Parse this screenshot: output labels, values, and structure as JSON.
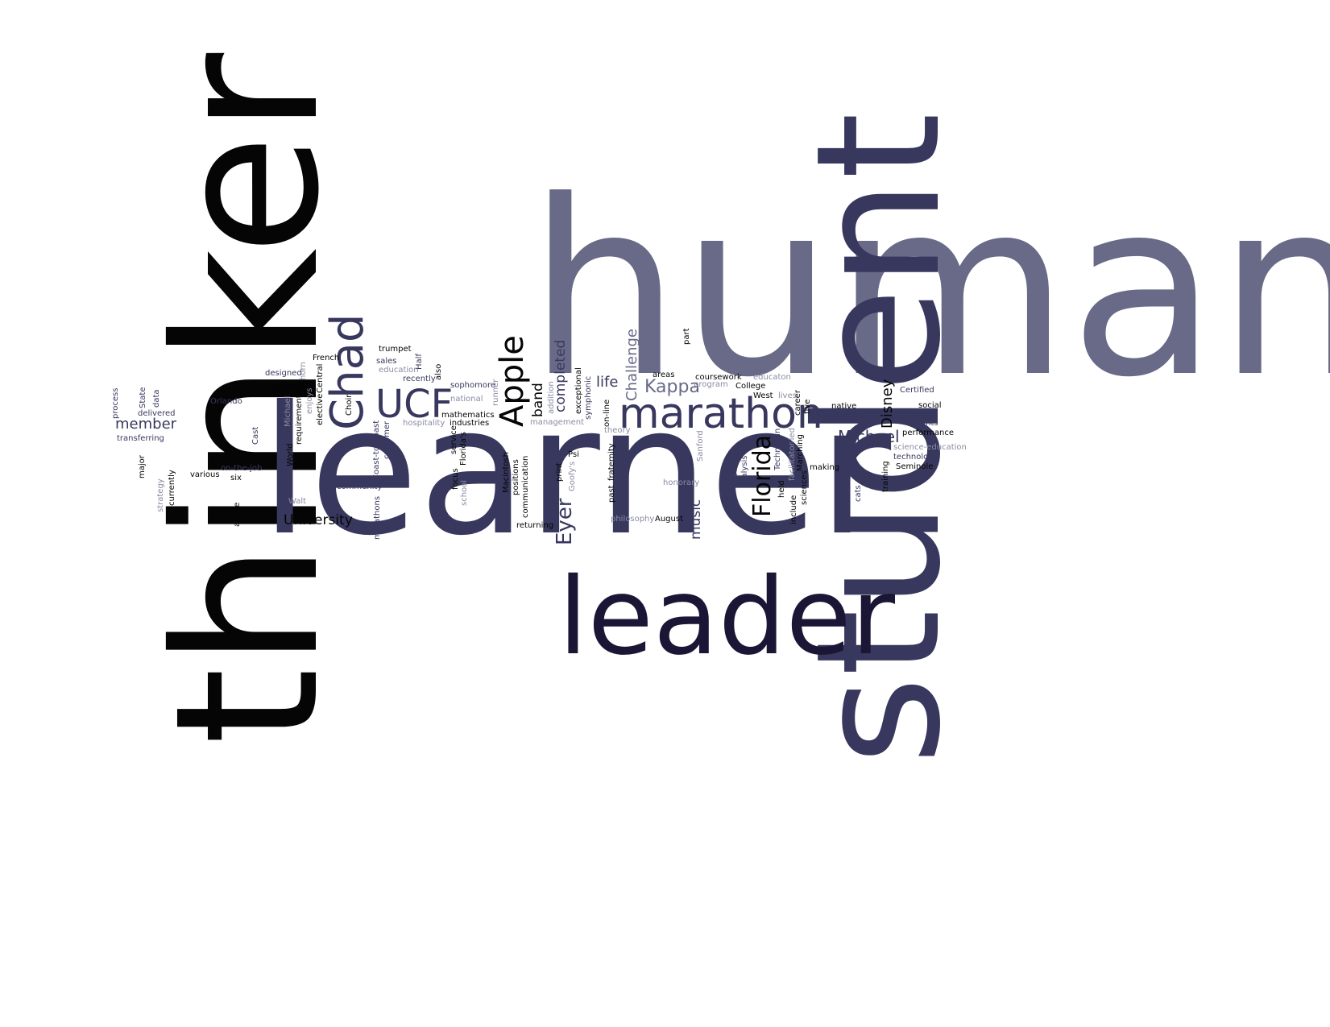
{
  "colors": {
    "background": "#ffffff",
    "slate": "#686a88",
    "navy": "#38385f",
    "dark": "#1b1635",
    "black": "#050505",
    "gray": "#8a8ca3"
  },
  "words": [
    {
      "text": "human",
      "color": "slate"
    },
    {
      "text": "thinker",
      "color": "black"
    },
    {
      "text": "learner",
      "color": "navy"
    },
    {
      "text": "student",
      "color": "navy"
    },
    {
      "text": "leader",
      "color": "dark"
    },
    {
      "text": "marathon",
      "color": "navy"
    },
    {
      "text": "UCF",
      "color": "navy"
    },
    {
      "text": "Chad",
      "color": "navy"
    },
    {
      "text": "Apple",
      "color": "black"
    },
    {
      "text": "Florida",
      "color": "black"
    },
    {
      "text": "Eyer",
      "color": "navy"
    },
    {
      "text": "Kappa",
      "color": "slate"
    },
    {
      "text": "Michael",
      "color": "navy"
    },
    {
      "text": "Disney",
      "color": "black"
    },
    {
      "text": "member",
      "color": "navy"
    },
    {
      "text": "University",
      "color": "black"
    },
    {
      "text": "completed",
      "color": "navy"
    },
    {
      "text": "Challenge",
      "color": "slate"
    },
    {
      "text": "music",
      "color": "navy"
    },
    {
      "text": "band",
      "color": "black"
    },
    {
      "text": "life",
      "color": "navy"
    },
    {
      "text": "trumpet",
      "color": "black"
    },
    {
      "text": "French",
      "color": "black"
    },
    {
      "text": "designed",
      "color": "navy"
    },
    {
      "text": "horn",
      "color": "gray"
    },
    {
      "text": "Half",
      "color": "navy"
    },
    {
      "text": "also",
      "color": "black"
    },
    {
      "text": "sales",
      "color": "navy"
    },
    {
      "text": "education",
      "color": "gray"
    },
    {
      "text": "recently",
      "color": "navy"
    },
    {
      "text": "anticipates",
      "color": "black"
    },
    {
      "text": "Central",
      "color": "black"
    },
    {
      "text": "enjoys",
      "color": "gray"
    },
    {
      "text": "Michael",
      "color": "gray"
    },
    {
      "text": "requirements",
      "color": "black"
    },
    {
      "text": "elective",
      "color": "black"
    },
    {
      "text": "Choir",
      "color": "black"
    },
    {
      "text": "Orlando",
      "color": "navy"
    },
    {
      "text": "sophomore",
      "color": "navy"
    },
    {
      "text": "runner",
      "color": "gray"
    },
    {
      "text": "national",
      "color": "gray"
    },
    {
      "text": "hospitality",
      "color": "gray"
    },
    {
      "text": "industries",
      "color": "black"
    },
    {
      "text": "mathematics",
      "color": "black"
    },
    {
      "text": "service",
      "color": "black"
    },
    {
      "text": "Florida's",
      "color": "black"
    },
    {
      "text": "Coast-to-Coast",
      "color": "navy"
    },
    {
      "text": "customer",
      "color": "navy"
    },
    {
      "text": "process",
      "color": "navy"
    },
    {
      "text": "State",
      "color": "navy"
    },
    {
      "text": "data",
      "color": "navy"
    },
    {
      "text": "delivered",
      "color": "navy"
    },
    {
      "text": "transferring",
      "color": "navy"
    },
    {
      "text": "major",
      "color": "black"
    },
    {
      "text": "strategy",
      "color": "gray"
    },
    {
      "text": "currently",
      "color": "black"
    },
    {
      "text": "various",
      "color": "black"
    },
    {
      "text": "on-the-job",
      "color": "navy"
    },
    {
      "text": "six",
      "color": "black"
    },
    {
      "text": "active",
      "color": "black"
    },
    {
      "text": "Cast",
      "color": "navy"
    },
    {
      "text": "World",
      "color": "black"
    },
    {
      "text": "Race",
      "color": "navy"
    },
    {
      "text": "Walt",
      "color": "gray"
    },
    {
      "text": "community",
      "color": "navy"
    },
    {
      "text": "marathons",
      "color": "navy"
    },
    {
      "text": "focus",
      "color": "black"
    },
    {
      "text": "school",
      "color": "gray"
    },
    {
      "text": "Macintosh",
      "color": "black"
    },
    {
      "text": "positions",
      "color": "black"
    },
    {
      "text": "communication",
      "color": "black"
    },
    {
      "text": "returning",
      "color": "black"
    },
    {
      "text": "addition",
      "color": "gray"
    },
    {
      "text": "management",
      "color": "gray"
    },
    {
      "text": "print",
      "color": "black"
    },
    {
      "text": "Psi",
      "color": "black"
    },
    {
      "text": "Goofy's",
      "color": "gray"
    },
    {
      "text": "exceptional",
      "color": "black"
    },
    {
      "text": "symphonic",
      "color": "navy"
    },
    {
      "text": "on-line",
      "color": "black"
    },
    {
      "text": "theory",
      "color": "gray"
    },
    {
      "text": "fraternity",
      "color": "black"
    },
    {
      "text": "past",
      "color": "black"
    },
    {
      "text": "philosophy",
      "color": "gray"
    },
    {
      "text": "August",
      "color": "black"
    },
    {
      "text": "part",
      "color": "black"
    },
    {
      "text": "areas",
      "color": "black"
    },
    {
      "text": "coursework",
      "color": "black"
    },
    {
      "text": "program",
      "color": "gray"
    },
    {
      "text": "educaton",
      "color": "gray"
    },
    {
      "text": "College",
      "color": "black"
    },
    {
      "text": "West",
      "color": "black"
    },
    {
      "text": "lives",
      "color": "gray"
    },
    {
      "text": "Sanford",
      "color": "gray"
    },
    {
      "text": "honorary",
      "color": "gray"
    },
    {
      "text": "family",
      "color": "navy"
    },
    {
      "text": "analysis",
      "color": "navy"
    },
    {
      "text": "Technician",
      "color": "navy"
    },
    {
      "text": "facilitator-led",
      "color": "gray"
    },
    {
      "text": "Marching",
      "color": "black"
    },
    {
      "text": "career",
      "color": "black"
    },
    {
      "text": "five",
      "color": "black"
    },
    {
      "text": "held",
      "color": "black"
    },
    {
      "text": "include",
      "color": "black"
    },
    {
      "text": "sciences",
      "color": "black"
    },
    {
      "text": "making",
      "color": "black"
    },
    {
      "text": "native",
      "color": "black"
    },
    {
      "text": "cats",
      "color": "navy"
    },
    {
      "text": "Certified",
      "color": "navy"
    },
    {
      "text": "social",
      "color": "black"
    },
    {
      "text": "including",
      "color": "navy"
    },
    {
      "text": "Knights",
      "color": "navy"
    },
    {
      "text": "performance",
      "color": "black"
    },
    {
      "text": "science-education",
      "color": "gray"
    },
    {
      "text": "technology",
      "color": "navy"
    },
    {
      "text": "Seminole",
      "color": "black"
    },
    {
      "text": "training",
      "color": "black"
    }
  ]
}
